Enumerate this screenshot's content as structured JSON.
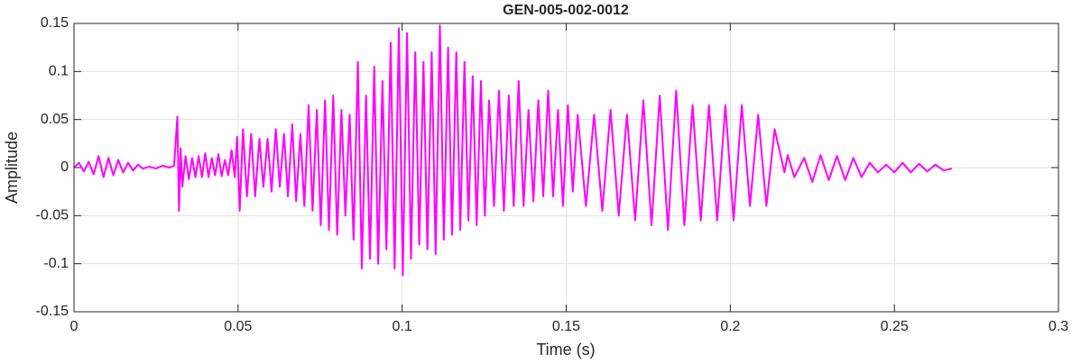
{
  "chart_data": {
    "type": "line",
    "title": "GEN-005-002-0012",
    "xlabel": "Time (s)",
    "ylabel": "Amplitude",
    "x": [
      0,
      0.0015,
      0.003,
      0.0045,
      0.006,
      0.0075,
      0.009,
      0.0105,
      0.012,
      0.0135,
      0.015,
      0.0165,
      0.018,
      0.0195,
      0.021,
      0.023,
      0.025,
      0.027,
      0.029,
      0.0305,
      0.0315,
      0.032,
      0.0325,
      0.033,
      0.034,
      0.035,
      0.036,
      0.037,
      0.038,
      0.039,
      0.04,
      0.041,
      0.042,
      0.043,
      0.044,
      0.045,
      0.046,
      0.047,
      0.048,
      0.049,
      0.0497,
      0.0505,
      0.0515,
      0.0527,
      0.054,
      0.0552,
      0.0565,
      0.0577,
      0.059,
      0.0602,
      0.0615,
      0.0627,
      0.064,
      0.0652,
      0.0665,
      0.0677,
      0.069,
      0.0702,
      0.0715,
      0.0727,
      0.074,
      0.0752,
      0.0765,
      0.0777,
      0.079,
      0.0802,
      0.0815,
      0.0827,
      0.084,
      0.0852,
      0.0865,
      0.0877,
      0.089,
      0.0902,
      0.0915,
      0.0927,
      0.094,
      0.0952,
      0.0965,
      0.0977,
      0.099,
      0.1002,
      0.1015,
      0.1027,
      0.104,
      0.1052,
      0.1065,
      0.1077,
      0.109,
      0.1102,
      0.1115,
      0.1127,
      0.114,
      0.1152,
      0.1165,
      0.1177,
      0.119,
      0.1202,
      0.1215,
      0.1227,
      0.124,
      0.1252,
      0.1265,
      0.128,
      0.1295,
      0.131,
      0.1325,
      0.134,
      0.1355,
      0.137,
      0.1385,
      0.14,
      0.1415,
      0.143,
      0.1445,
      0.146,
      0.1475,
      0.149,
      0.1505,
      0.152,
      0.1535,
      0.156,
      0.1585,
      0.161,
      0.1635,
      0.166,
      0.1685,
      0.171,
      0.1735,
      0.176,
      0.1785,
      0.181,
      0.1835,
      0.186,
      0.1885,
      0.191,
      0.1935,
      0.196,
      0.1985,
      0.201,
      0.2035,
      0.206,
      0.2085,
      0.211,
      0.2135,
      0.2165,
      0.2175,
      0.2195,
      0.2225,
      0.225,
      0.2275,
      0.23,
      0.2325,
      0.235,
      0.2375,
      0.24,
      0.2425,
      0.245,
      0.2475,
      0.25,
      0.2525,
      0.255,
      0.2575,
      0.26,
      0.2625,
      0.265,
      0.2675
    ],
    "series": [
      {
        "color": "#ff00ff",
        "values": [
          0,
          0.005,
          -0.004,
          0.006,
          -0.007,
          0.012,
          -0.01,
          0.01,
          -0.008,
          0.008,
          -0.005,
          0.005,
          -0.003,
          0.003,
          -0.001,
          0.001,
          -0.001,
          0.002,
          0,
          0.002,
          0.053,
          -0.045,
          0.02,
          -0.02,
          0.012,
          -0.012,
          0.01,
          -0.01,
          0.012,
          -0.01,
          0.015,
          -0.01,
          0.01,
          -0.008,
          0.014,
          -0.009,
          0.008,
          -0.008,
          0.018,
          -0.01,
          0.032,
          -0.045,
          0.04,
          -0.03,
          0.035,
          -0.03,
          0.03,
          -0.02,
          0.03,
          -0.025,
          0.04,
          -0.02,
          0.035,
          -0.03,
          0.045,
          -0.035,
          0.035,
          -0.04,
          0.065,
          -0.045,
          0.06,
          -0.06,
          0.07,
          -0.065,
          0.075,
          -0.07,
          0.06,
          -0.05,
          0.055,
          -0.075,
          0.11,
          -0.105,
          0.075,
          -0.095,
          0.105,
          -0.1,
          0.09,
          -0.085,
          0.13,
          -0.105,
          0.145,
          -0.112,
          0.14,
          -0.095,
          0.12,
          -0.08,
          0.11,
          -0.085,
          0.12,
          -0.09,
          0.148,
          -0.075,
          0.125,
          -0.07,
          0.12,
          -0.065,
          0.11,
          -0.055,
          0.095,
          -0.06,
          0.09,
          -0.05,
          0.07,
          -0.04,
          0.08,
          -0.045,
          0.075,
          -0.04,
          0.09,
          -0.04,
          0.06,
          -0.035,
          0.07,
          -0.03,
          0.08,
          -0.03,
          0.06,
          -0.04,
          0.065,
          -0.025,
          0.055,
          -0.04,
          0.055,
          -0.045,
          0.06,
          -0.05,
          0.055,
          -0.055,
          0.07,
          -0.06,
          0.075,
          -0.065,
          0.08,
          -0.06,
          0.065,
          -0.055,
          0.065,
          -0.055,
          0.065,
          -0.055,
          0.065,
          -0.04,
          0.055,
          -0.04,
          0.04,
          -0.005,
          0.013,
          -0.01,
          0.01,
          -0.015,
          0.013,
          -0.013,
          0.012,
          -0.013,
          0.01,
          -0.01,
          0.005,
          -0.005,
          0.003,
          -0.005,
          0.005,
          -0.005,
          0.004,
          -0.004,
          0.003,
          -0.003,
          -0.001
        ]
      }
    ],
    "xlim": [
      0,
      0.3
    ],
    "xticks": [
      0,
      0.05,
      0.1,
      0.15,
      0.2,
      0.25,
      0.3
    ],
    "ylim": [
      -0.15,
      0.15
    ],
    "yticks": [
      -0.15,
      -0.1,
      -0.05,
      0,
      0.05,
      0.1,
      0.15
    ],
    "grid": true
  }
}
